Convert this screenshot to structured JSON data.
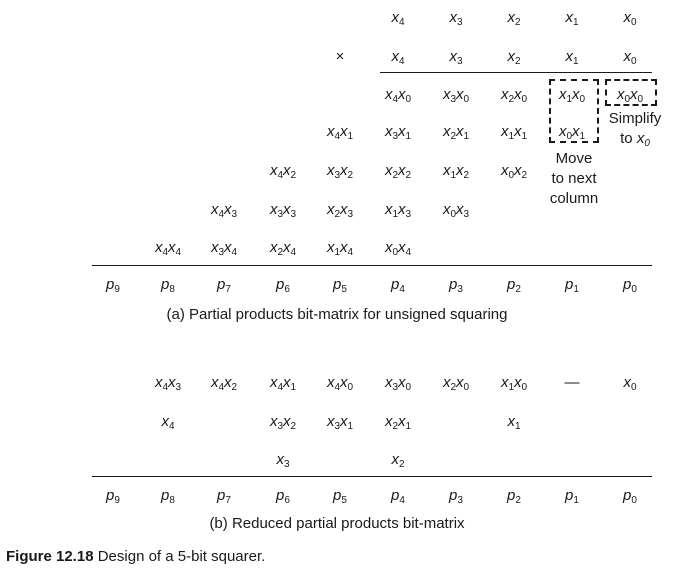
{
  "panel_a": {
    "rows": [
      [
        "",
        "",
        "",
        "",
        "",
        "x_4",
        "x_3",
        "x_2",
        "x_1",
        "x_0"
      ],
      [
        "",
        "",
        "",
        "",
        "×",
        "x_4",
        "x_3",
        "x_2",
        "x_1",
        "x_0"
      ],
      [
        "",
        "",
        "",
        "",
        "",
        "x_4x_0",
        "x_3x_0",
        "x_2x_0",
        "x_1x_0",
        "x_0x_0"
      ],
      [
        "",
        "",
        "",
        "",
        "x_4x_1",
        "x_3x_1",
        "x_2x_1",
        "x_1x_1",
        "x_0x_1",
        ""
      ],
      [
        "",
        "",
        "",
        "x_4x_2",
        "x_3x_2",
        "x_2x_2",
        "x_1x_2",
        "x_0x_2",
        "",
        ""
      ],
      [
        "",
        "",
        "x_4x_3",
        "x_3x_3",
        "x_2x_3",
        "x_1x_3",
        "x_0x_3",
        "",
        "",
        ""
      ],
      [
        "",
        "x_4x_4",
        "x_3x_4",
        "x_2x_4",
        "x_1x_4",
        "x_0x_4",
        "",
        "",
        "",
        ""
      ]
    ],
    "outputs": [
      "p_9",
      "p_8",
      "p_7",
      "p_6",
      "p_5",
      "p_4",
      "p_3",
      "p_2",
      "p_1",
      "p_0"
    ],
    "caption": "(a) Partial products bit-matrix for unsigned squaring",
    "note_move": "Move to next column",
    "note_simplify": "Simplify to x_0"
  },
  "panel_b": {
    "rows": [
      [
        "",
        "x_4x_3",
        "x_4x_2",
        "x_4x_1",
        "x_4x_0",
        "x_3x_0",
        "x_2x_0",
        "x_1x_0",
        "—",
        "x_0"
      ],
      [
        "",
        "x_4",
        "",
        "x_3x_2",
        "x_3x_1",
        "x_2x_1",
        "",
        "x_1",
        "",
        ""
      ],
      [
        "",
        "",
        "",
        "x_3",
        "",
        "x_2",
        "",
        "",
        "",
        ""
      ]
    ],
    "outputs": [
      "p_9",
      "p_8",
      "p_7",
      "p_6",
      "p_5",
      "p_4",
      "p_3",
      "p_2",
      "p_1",
      "p_0"
    ],
    "caption": "(b) Reduced partial products bit-matrix"
  },
  "figure": {
    "label": "Figure 12.18",
    "title": "Design of a 5-bit squarer."
  }
}
